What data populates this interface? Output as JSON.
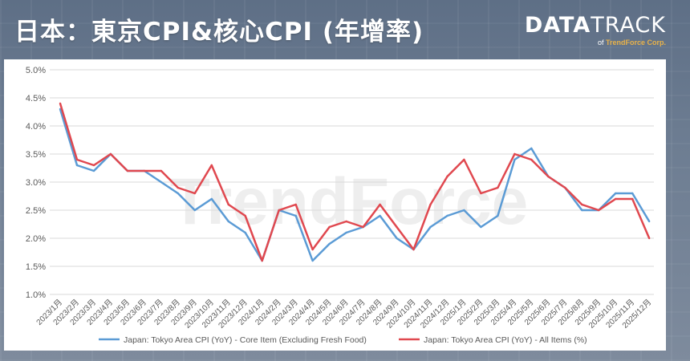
{
  "header": {
    "title": "日本：東京CPI&核心CPI (年增率)"
  },
  "logo": {
    "brand_bold": "DATA",
    "brand_light": "TRACK",
    "sub_prefix": "of",
    "sub_company": "TrendForce Corp."
  },
  "watermark": "TrendForce",
  "colors": {
    "core": "#5b9bd5",
    "all_items": "#e0484f"
  },
  "chart_data": {
    "type": "line",
    "title": "",
    "xlabel": "",
    "ylabel": "",
    "ylim": [
      1.0,
      5.0
    ],
    "yticks": [
      "1.0%",
      "1.5%",
      "2.0%",
      "2.5%",
      "3.0%",
      "3.5%",
      "4.0%",
      "4.5%",
      "5.0%"
    ],
    "ytick_values": [
      1.0,
      1.5,
      2.0,
      2.5,
      3.0,
      3.5,
      4.0,
      4.5,
      5.0
    ],
    "grid": true,
    "legend_position": "bottom",
    "categories": [
      "2023/1月",
      "2023/2月",
      "2023/3月",
      "2023/4月",
      "2023/5月",
      "2023/6月",
      "2023/7月",
      "2023/8月",
      "2023/9月",
      "2023/10月",
      "2023/11月",
      "2023/12月",
      "2024/1月",
      "2024/2月",
      "2024/3月",
      "2024/4月",
      "2024/5月",
      "2024/6月",
      "2024/7月",
      "2024/8月",
      "2024/9月",
      "2024/10月",
      "2024/11月",
      "2024/12月",
      "2025/1月",
      "2025/2月",
      "2025/3月",
      "2025/4月",
      "2025/5月",
      "2025/6月",
      "2025/7月",
      "2025/8月",
      "2025/9月",
      "2025/10月",
      "2025/11月",
      "2025/12月"
    ],
    "series": [
      {
        "name": "Japan: Tokyo Area CPI (YoY) - Core Item (Excluding Fresh Food)",
        "color": "#5b9bd5",
        "values": [
          4.3,
          3.3,
          3.2,
          3.5,
          3.2,
          3.2,
          3.0,
          2.8,
          2.5,
          2.7,
          2.3,
          2.1,
          1.6,
          2.5,
          2.4,
          1.6,
          1.9,
          2.1,
          2.2,
          2.4,
          2.0,
          1.8,
          2.2,
          2.4,
          2.5,
          2.2,
          2.4,
          3.4,
          3.6,
          3.1,
          2.9,
          2.5,
          2.5,
          2.8,
          2.8,
          2.3
        ]
      },
      {
        "name": "Japan: Tokyo Area CPI (YoY) - All Items (%)",
        "color": "#e0484f",
        "values": [
          4.4,
          3.4,
          3.3,
          3.5,
          3.2,
          3.2,
          3.2,
          2.9,
          2.8,
          3.3,
          2.6,
          2.4,
          1.6,
          2.5,
          2.6,
          1.8,
          2.2,
          2.3,
          2.2,
          2.6,
          2.2,
          1.8,
          2.6,
          3.1,
          3.4,
          2.8,
          2.9,
          3.5,
          3.4,
          3.1,
          2.9,
          2.6,
          2.5,
          2.7,
          2.7,
          2.0
        ]
      }
    ]
  }
}
